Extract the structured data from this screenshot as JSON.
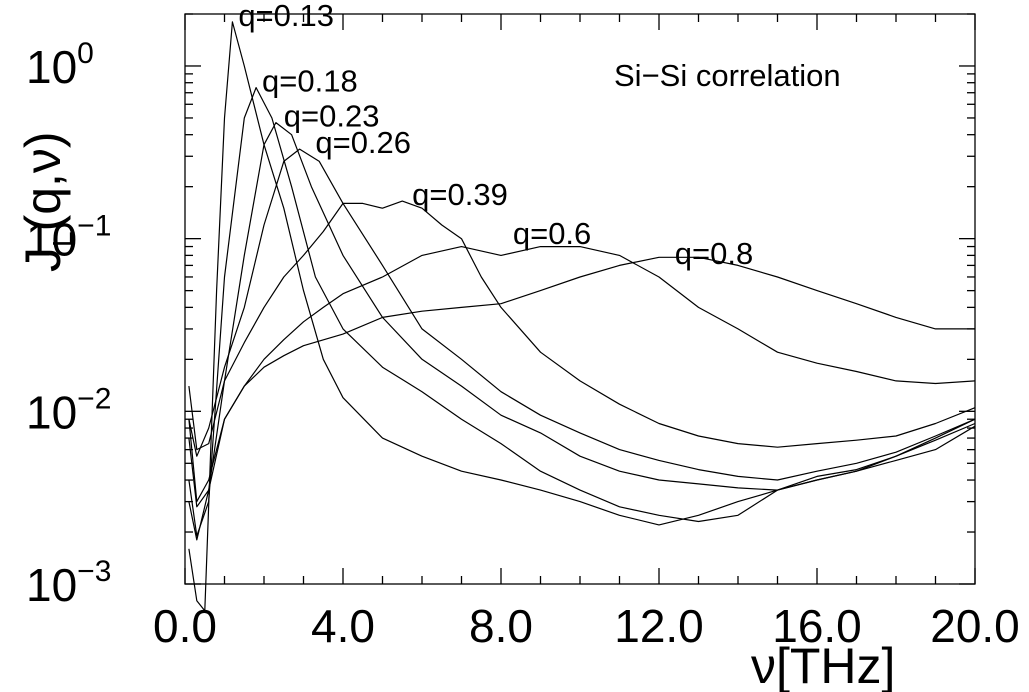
{
  "chart_data": {
    "type": "line",
    "title": "",
    "annotation": "Si−Si correlation",
    "xlabel": "ν[THz]",
    "ylabel": {
      "main": "J",
      "sub": "L",
      "rest": "(q,ν)"
    },
    "xlim": [
      0,
      20
    ],
    "ylim": [
      0.001,
      2
    ],
    "yscale": "log",
    "grid": false,
    "legend": "none",
    "x_ticks": [
      {
        "value": 0,
        "label": "0.0"
      },
      {
        "value": 4,
        "label": "4.0"
      },
      {
        "value": 8,
        "label": "8.0"
      },
      {
        "value": 12,
        "label": "12.0"
      },
      {
        "value": 16,
        "label": "16.0"
      },
      {
        "value": 20,
        "label": "20.0"
      }
    ],
    "y_ticks": [
      {
        "value": 1,
        "base": "10",
        "exp": "0"
      },
      {
        "value": 0.1,
        "base": "10",
        "exp": "−1"
      },
      {
        "value": 0.01,
        "base": "10",
        "exp": "−2"
      },
      {
        "value": 0.001,
        "base": "10",
        "exp": "−3"
      }
    ],
    "series": [
      {
        "name": "q=0.13",
        "points": [
          [
            0.1,
            0.0016
          ],
          [
            0.3,
            0.0008
          ],
          [
            0.5,
            0.0007
          ],
          [
            0.8,
            0.05
          ],
          [
            1.0,
            0.5
          ],
          [
            1.2,
            1.8
          ],
          [
            1.5,
            1.0
          ],
          [
            2.0,
            0.35
          ],
          [
            2.5,
            0.15
          ],
          [
            3.0,
            0.05
          ],
          [
            3.5,
            0.02
          ],
          [
            4.0,
            0.012
          ],
          [
            5.0,
            0.007
          ],
          [
            6.0,
            0.0055
          ],
          [
            7.0,
            0.0045
          ],
          [
            8.0,
            0.004
          ],
          [
            9.0,
            0.0035
          ],
          [
            10.0,
            0.003
          ],
          [
            11.0,
            0.0025
          ],
          [
            12.0,
            0.0022
          ],
          [
            13.0,
            0.0025
          ],
          [
            14.0,
            0.003
          ],
          [
            15.0,
            0.0035
          ],
          [
            16.0,
            0.004
          ],
          [
            17.0,
            0.0045
          ],
          [
            18.0,
            0.0052
          ],
          [
            19.0,
            0.006
          ],
          [
            20.0,
            0.0082
          ]
        ],
        "label_pos": [
          1.35,
          1.8
        ]
      },
      {
        "name": "q=0.18",
        "points": [
          [
            0.1,
            0.004
          ],
          [
            0.3,
            0.0019
          ],
          [
            0.6,
            0.003
          ],
          [
            1.0,
            0.06
          ],
          [
            1.5,
            0.5
          ],
          [
            1.8,
            0.75
          ],
          [
            2.2,
            0.5
          ],
          [
            2.7,
            0.2
          ],
          [
            3.3,
            0.06
          ],
          [
            4.0,
            0.03
          ],
          [
            5.0,
            0.018
          ],
          [
            6.0,
            0.013
          ],
          [
            7.0,
            0.009
          ],
          [
            8.0,
            0.0065
          ],
          [
            9.0,
            0.0045
          ],
          [
            10.0,
            0.0035
          ],
          [
            11.0,
            0.0028
          ],
          [
            12.0,
            0.0025
          ],
          [
            13.0,
            0.0023
          ],
          [
            14.0,
            0.0025
          ],
          [
            15.0,
            0.0035
          ],
          [
            16.0,
            0.004
          ],
          [
            17.0,
            0.0045
          ],
          [
            18.0,
            0.0055
          ],
          [
            19.0,
            0.0068
          ],
          [
            20.0,
            0.0085
          ]
        ],
        "label_pos": [
          1.95,
          0.75
        ]
      },
      {
        "name": "q=0.23",
        "points": [
          [
            0.1,
            0.003
          ],
          [
            0.3,
            0.0018
          ],
          [
            0.6,
            0.0035
          ],
          [
            1.0,
            0.015
          ],
          [
            1.5,
            0.08
          ],
          [
            2.0,
            0.35
          ],
          [
            2.3,
            0.47
          ],
          [
            2.7,
            0.4
          ],
          [
            3.2,
            0.2
          ],
          [
            4.0,
            0.08
          ],
          [
            5.0,
            0.035
          ],
          [
            6.0,
            0.02
          ],
          [
            7.0,
            0.014
          ],
          [
            8.0,
            0.0095
          ],
          [
            9.0,
            0.0075
          ],
          [
            10.0,
            0.0055
          ],
          [
            11.0,
            0.0045
          ],
          [
            12.0,
            0.004
          ],
          [
            13.0,
            0.0038
          ],
          [
            14.0,
            0.0036
          ],
          [
            15.0,
            0.0035
          ],
          [
            16.0,
            0.0042
          ],
          [
            17.0,
            0.0046
          ],
          [
            18.0,
            0.0055
          ],
          [
            19.0,
            0.007
          ],
          [
            20.0,
            0.009
          ]
        ],
        "label_pos": [
          2.5,
          0.47
        ]
      },
      {
        "name": "q=0.26",
        "points": [
          [
            0.1,
            0.009
          ],
          [
            0.3,
            0.0055
          ],
          [
            0.6,
            0.008
          ],
          [
            1.0,
            0.018
          ],
          [
            1.5,
            0.04
          ],
          [
            2.0,
            0.12
          ],
          [
            2.5,
            0.28
          ],
          [
            2.9,
            0.33
          ],
          [
            3.4,
            0.28
          ],
          [
            4.0,
            0.16
          ],
          [
            5.0,
            0.07
          ],
          [
            6.0,
            0.03
          ],
          [
            7.0,
            0.02
          ],
          [
            8.0,
            0.013
          ],
          [
            9.0,
            0.0095
          ],
          [
            10.0,
            0.0075
          ],
          [
            11.0,
            0.006
          ],
          [
            12.0,
            0.0052
          ],
          [
            13.0,
            0.0046
          ],
          [
            14.0,
            0.0042
          ],
          [
            15.0,
            0.004
          ],
          [
            16.0,
            0.0045
          ],
          [
            17.0,
            0.005
          ],
          [
            18.0,
            0.0058
          ],
          [
            19.0,
            0.0072
          ],
          [
            20.0,
            0.009
          ]
        ],
        "label_pos": [
          3.3,
          0.33
        ]
      },
      {
        "name": "q=0.39",
        "points": [
          [
            0.1,
            0.014
          ],
          [
            0.3,
            0.006
          ],
          [
            0.6,
            0.0065
          ],
          [
            1.0,
            0.015
          ],
          [
            1.5,
            0.025
          ],
          [
            2.0,
            0.04
          ],
          [
            2.5,
            0.06
          ],
          [
            3.0,
            0.08
          ],
          [
            3.5,
            0.11
          ],
          [
            4.0,
            0.16
          ],
          [
            4.5,
            0.16
          ],
          [
            5.0,
            0.15
          ],
          [
            5.5,
            0.165
          ],
          [
            6.0,
            0.15
          ],
          [
            6.5,
            0.12
          ],
          [
            7.0,
            0.1
          ],
          [
            7.5,
            0.06
          ],
          [
            8.0,
            0.04
          ],
          [
            9.0,
            0.022
          ],
          [
            10.0,
            0.015
          ],
          [
            11.0,
            0.011
          ],
          [
            12.0,
            0.0085
          ],
          [
            13.0,
            0.0072
          ],
          [
            14.0,
            0.0065
          ],
          [
            15.0,
            0.0062
          ],
          [
            16.0,
            0.0065
          ],
          [
            17.0,
            0.0068
          ],
          [
            18.0,
            0.0072
          ],
          [
            19.0,
            0.0085
          ],
          [
            20.0,
            0.0105
          ]
        ],
        "label_pos": [
          5.75,
          0.165
        ]
      },
      {
        "name": "q=0.6",
        "points": [
          [
            0.1,
            0.009
          ],
          [
            0.3,
            0.003
          ],
          [
            0.6,
            0.004
          ],
          [
            1.0,
            0.009
          ],
          [
            1.5,
            0.014
          ],
          [
            2.0,
            0.02
          ],
          [
            2.5,
            0.026
          ],
          [
            3.0,
            0.033
          ],
          [
            3.5,
            0.04
          ],
          [
            4.0,
            0.048
          ],
          [
            5.0,
            0.06
          ],
          [
            6.0,
            0.08
          ],
          [
            7.0,
            0.09
          ],
          [
            8.0,
            0.08
          ],
          [
            9.0,
            0.09
          ],
          [
            10.0,
            0.09
          ],
          [
            11.0,
            0.08
          ],
          [
            12.0,
            0.06
          ],
          [
            13.0,
            0.04
          ],
          [
            14.0,
            0.03
          ],
          [
            15.0,
            0.022
          ],
          [
            16.0,
            0.019
          ],
          [
            17.0,
            0.017
          ],
          [
            18.0,
            0.015
          ],
          [
            19.0,
            0.0145
          ],
          [
            20.0,
            0.015
          ]
        ],
        "label_pos": [
          8.3,
          0.098
        ]
      },
      {
        "name": "q=0.8",
        "points": [
          [
            0.1,
            0.007
          ],
          [
            0.3,
            0.0028
          ],
          [
            0.6,
            0.0035
          ],
          [
            1.0,
            0.009
          ],
          [
            1.5,
            0.014
          ],
          [
            2.0,
            0.018
          ],
          [
            2.5,
            0.021
          ],
          [
            3.0,
            0.024
          ],
          [
            4.0,
            0.028
          ],
          [
            5.0,
            0.035
          ],
          [
            6.0,
            0.038
          ],
          [
            7.0,
            0.04
          ],
          [
            8.0,
            0.042
          ],
          [
            9.0,
            0.05
          ],
          [
            10.0,
            0.06
          ],
          [
            11.0,
            0.07
          ],
          [
            12.0,
            0.078
          ],
          [
            13.0,
            0.078
          ],
          [
            14.0,
            0.07
          ],
          [
            15.0,
            0.06
          ],
          [
            16.0,
            0.05
          ],
          [
            17.0,
            0.042
          ],
          [
            18.0,
            0.035
          ],
          [
            19.0,
            0.03
          ],
          [
            20.0,
            0.03
          ]
        ],
        "label_pos": [
          12.4,
          0.075
        ]
      }
    ]
  }
}
